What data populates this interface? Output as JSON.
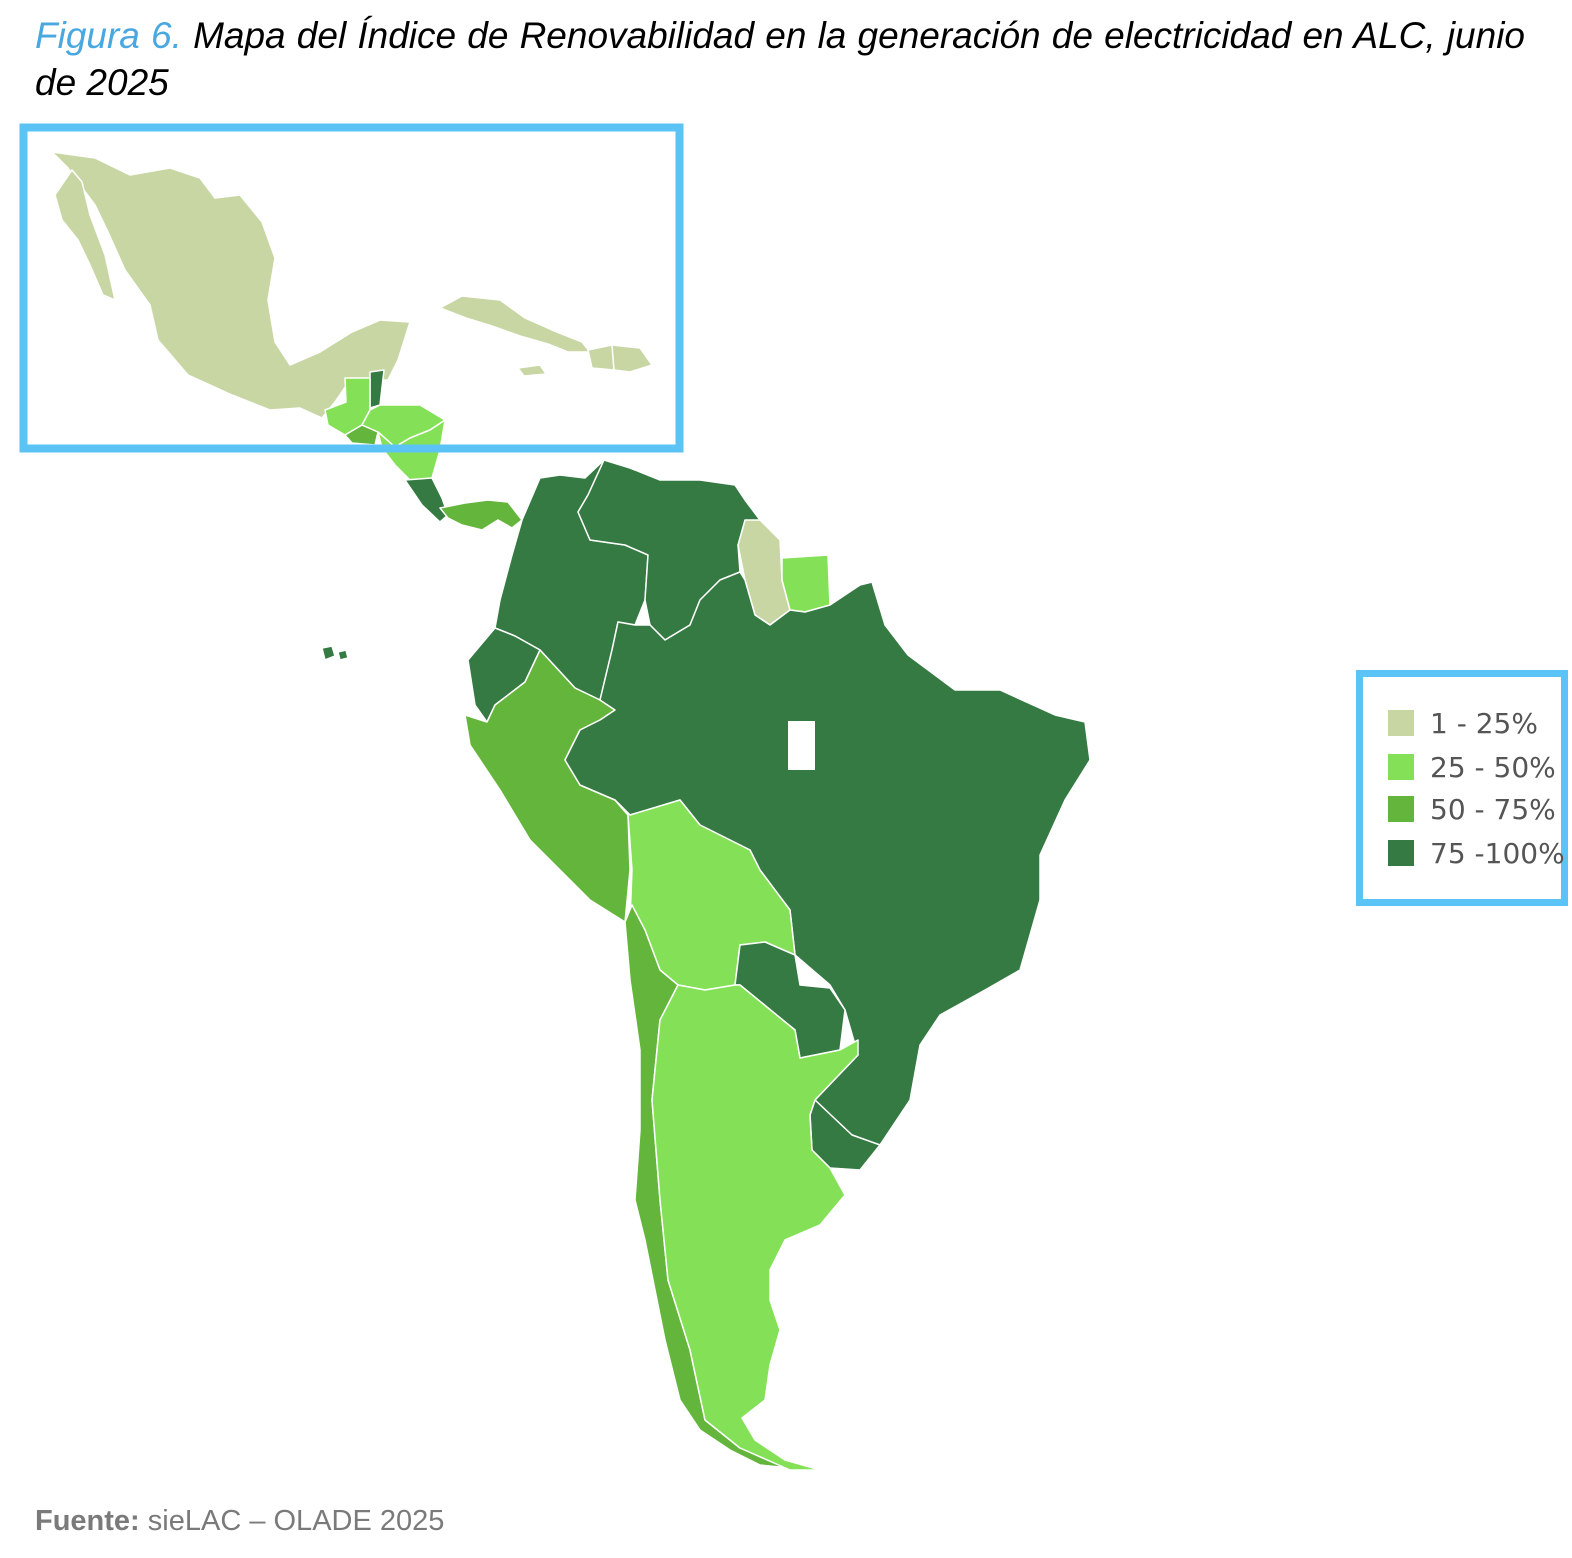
{
  "title": {
    "figure_label": "Figura 6.",
    "text": " Mapa del Índice de Renovabilidad en la generación de electricidad en ALC, junio de 2025"
  },
  "legend": {
    "items": [
      {
        "label": "1 - 25%",
        "color": "#c8d6a4"
      },
      {
        "label": "25 - 50%",
        "color": "#84e157"
      },
      {
        "label": "50 - 75%",
        "color": "#63b53c"
      },
      {
        "label": "75 -100%",
        "color": "#357a42"
      }
    ]
  },
  "source": {
    "prefix": "Fuente:",
    "text": " sieLAC – OLADE 2025"
  },
  "colors": {
    "inset_border": "#5bc3f5",
    "boundary": "#ffffff"
  },
  "regions": [
    {
      "name": "México",
      "class": "1 - 25%"
    },
    {
      "name": "Cuba",
      "class": "1 - 25%"
    },
    {
      "name": "República Dominicana",
      "class": "1 - 25%"
    },
    {
      "name": "Haití",
      "class": "1 - 25%"
    },
    {
      "name": "Jamaica",
      "class": "1 - 25%"
    },
    {
      "name": "Guyana",
      "class": "1 - 25%"
    },
    {
      "name": "Guatemala",
      "class": "25 - 50%"
    },
    {
      "name": "Honduras",
      "class": "25 - 50%"
    },
    {
      "name": "Nicaragua",
      "class": "25 - 50%"
    },
    {
      "name": "Surinam",
      "class": "25 - 50%"
    },
    {
      "name": "Bolivia",
      "class": "25 - 50%"
    },
    {
      "name": "Argentina",
      "class": "25 - 50%"
    },
    {
      "name": "El Salvador",
      "class": "50 - 75%"
    },
    {
      "name": "Panamá",
      "class": "50 - 75%"
    },
    {
      "name": "Perú",
      "class": "50 - 75%"
    },
    {
      "name": "Chile",
      "class": "50 - 75%"
    },
    {
      "name": "Belice",
      "class": "75 -100%"
    },
    {
      "name": "Costa Rica",
      "class": "75 -100%"
    },
    {
      "name": "Colombia",
      "class": "75 -100%"
    },
    {
      "name": "Venezuela",
      "class": "75 -100%"
    },
    {
      "name": "Ecuador",
      "class": "75 -100%"
    },
    {
      "name": "Brasil",
      "class": "75 -100%"
    },
    {
      "name": "Paraguay",
      "class": "75 -100%"
    },
    {
      "name": "Uruguay",
      "class": "75 -100%"
    }
  ]
}
